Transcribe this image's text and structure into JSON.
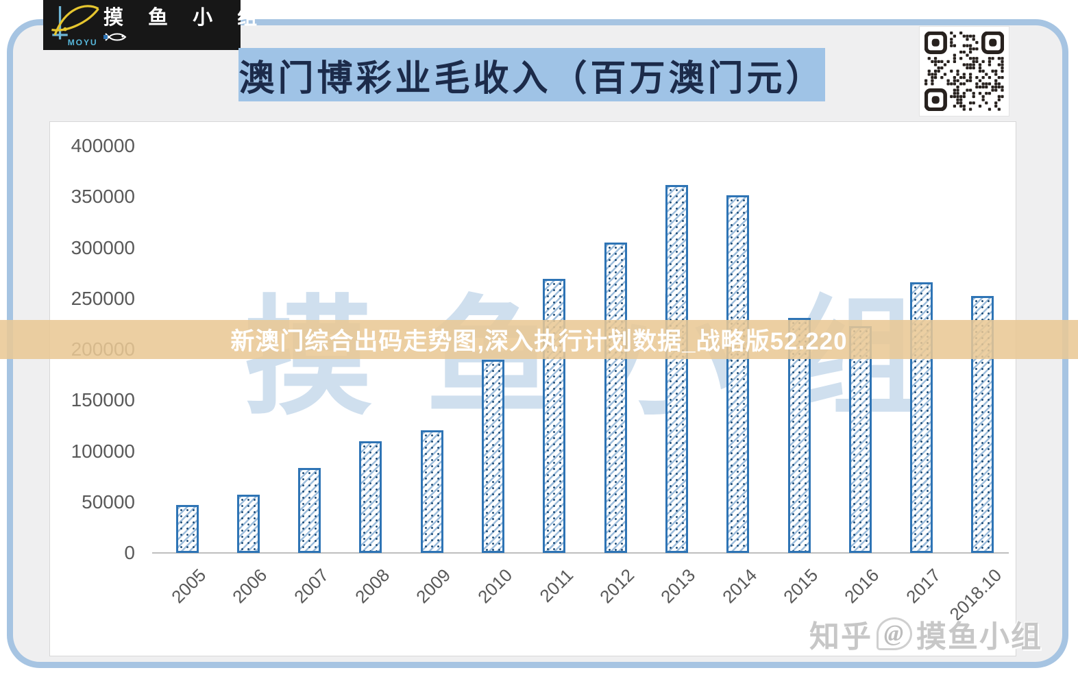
{
  "logo": {
    "brand": "MOYU",
    "group_name": "摸鱼小组",
    "group_name_spaced": "摸 鱼 小 组"
  },
  "title": "澳门博彩业毛收入（百万澳门元）",
  "banner": {
    "text": "新澳门综合出码走势图,深入执行计划数据_战略版52.220"
  },
  "watermarks": {
    "center_chars": [
      "摸",
      "鱼",
      "小",
      "组"
    ],
    "corner": {
      "site": "知乎",
      "at": "@",
      "name": "摸鱼小组"
    }
  },
  "colors": {
    "bar_border": "#2e74b5",
    "bar_hatch": "#3576b5",
    "title_background": "#9fc3e6",
    "banner_background": "#e9c994",
    "frame_border": "#a6c4e2",
    "axis_text": "#595959",
    "watermark_blue": "#cfdfee"
  },
  "chart_data": {
    "type": "bar",
    "title": "澳门博彩业毛收入（百万澳门元）",
    "xlabel": "",
    "ylabel": "",
    "categories": [
      "2005",
      "2006",
      "2007",
      "2008",
      "2009",
      "2010",
      "2011",
      "2012",
      "2013",
      "2014",
      "2015",
      "2016",
      "2017",
      "2018.10"
    ],
    "values": [
      47000,
      57500,
      83800,
      109800,
      120400,
      189600,
      269100,
      305200,
      361900,
      351500,
      230800,
      223200,
      265700,
      252400
    ],
    "ylim": [
      0,
      400000
    ],
    "ytick_step": 50000,
    "ytick_labels": [
      "400000",
      "350000",
      "300000",
      "250000",
      "200000",
      "150000",
      "100000",
      "50000",
      "0"
    ],
    "grid": false,
    "legend": false,
    "bar_style": "diagonal-hatch-blue"
  }
}
